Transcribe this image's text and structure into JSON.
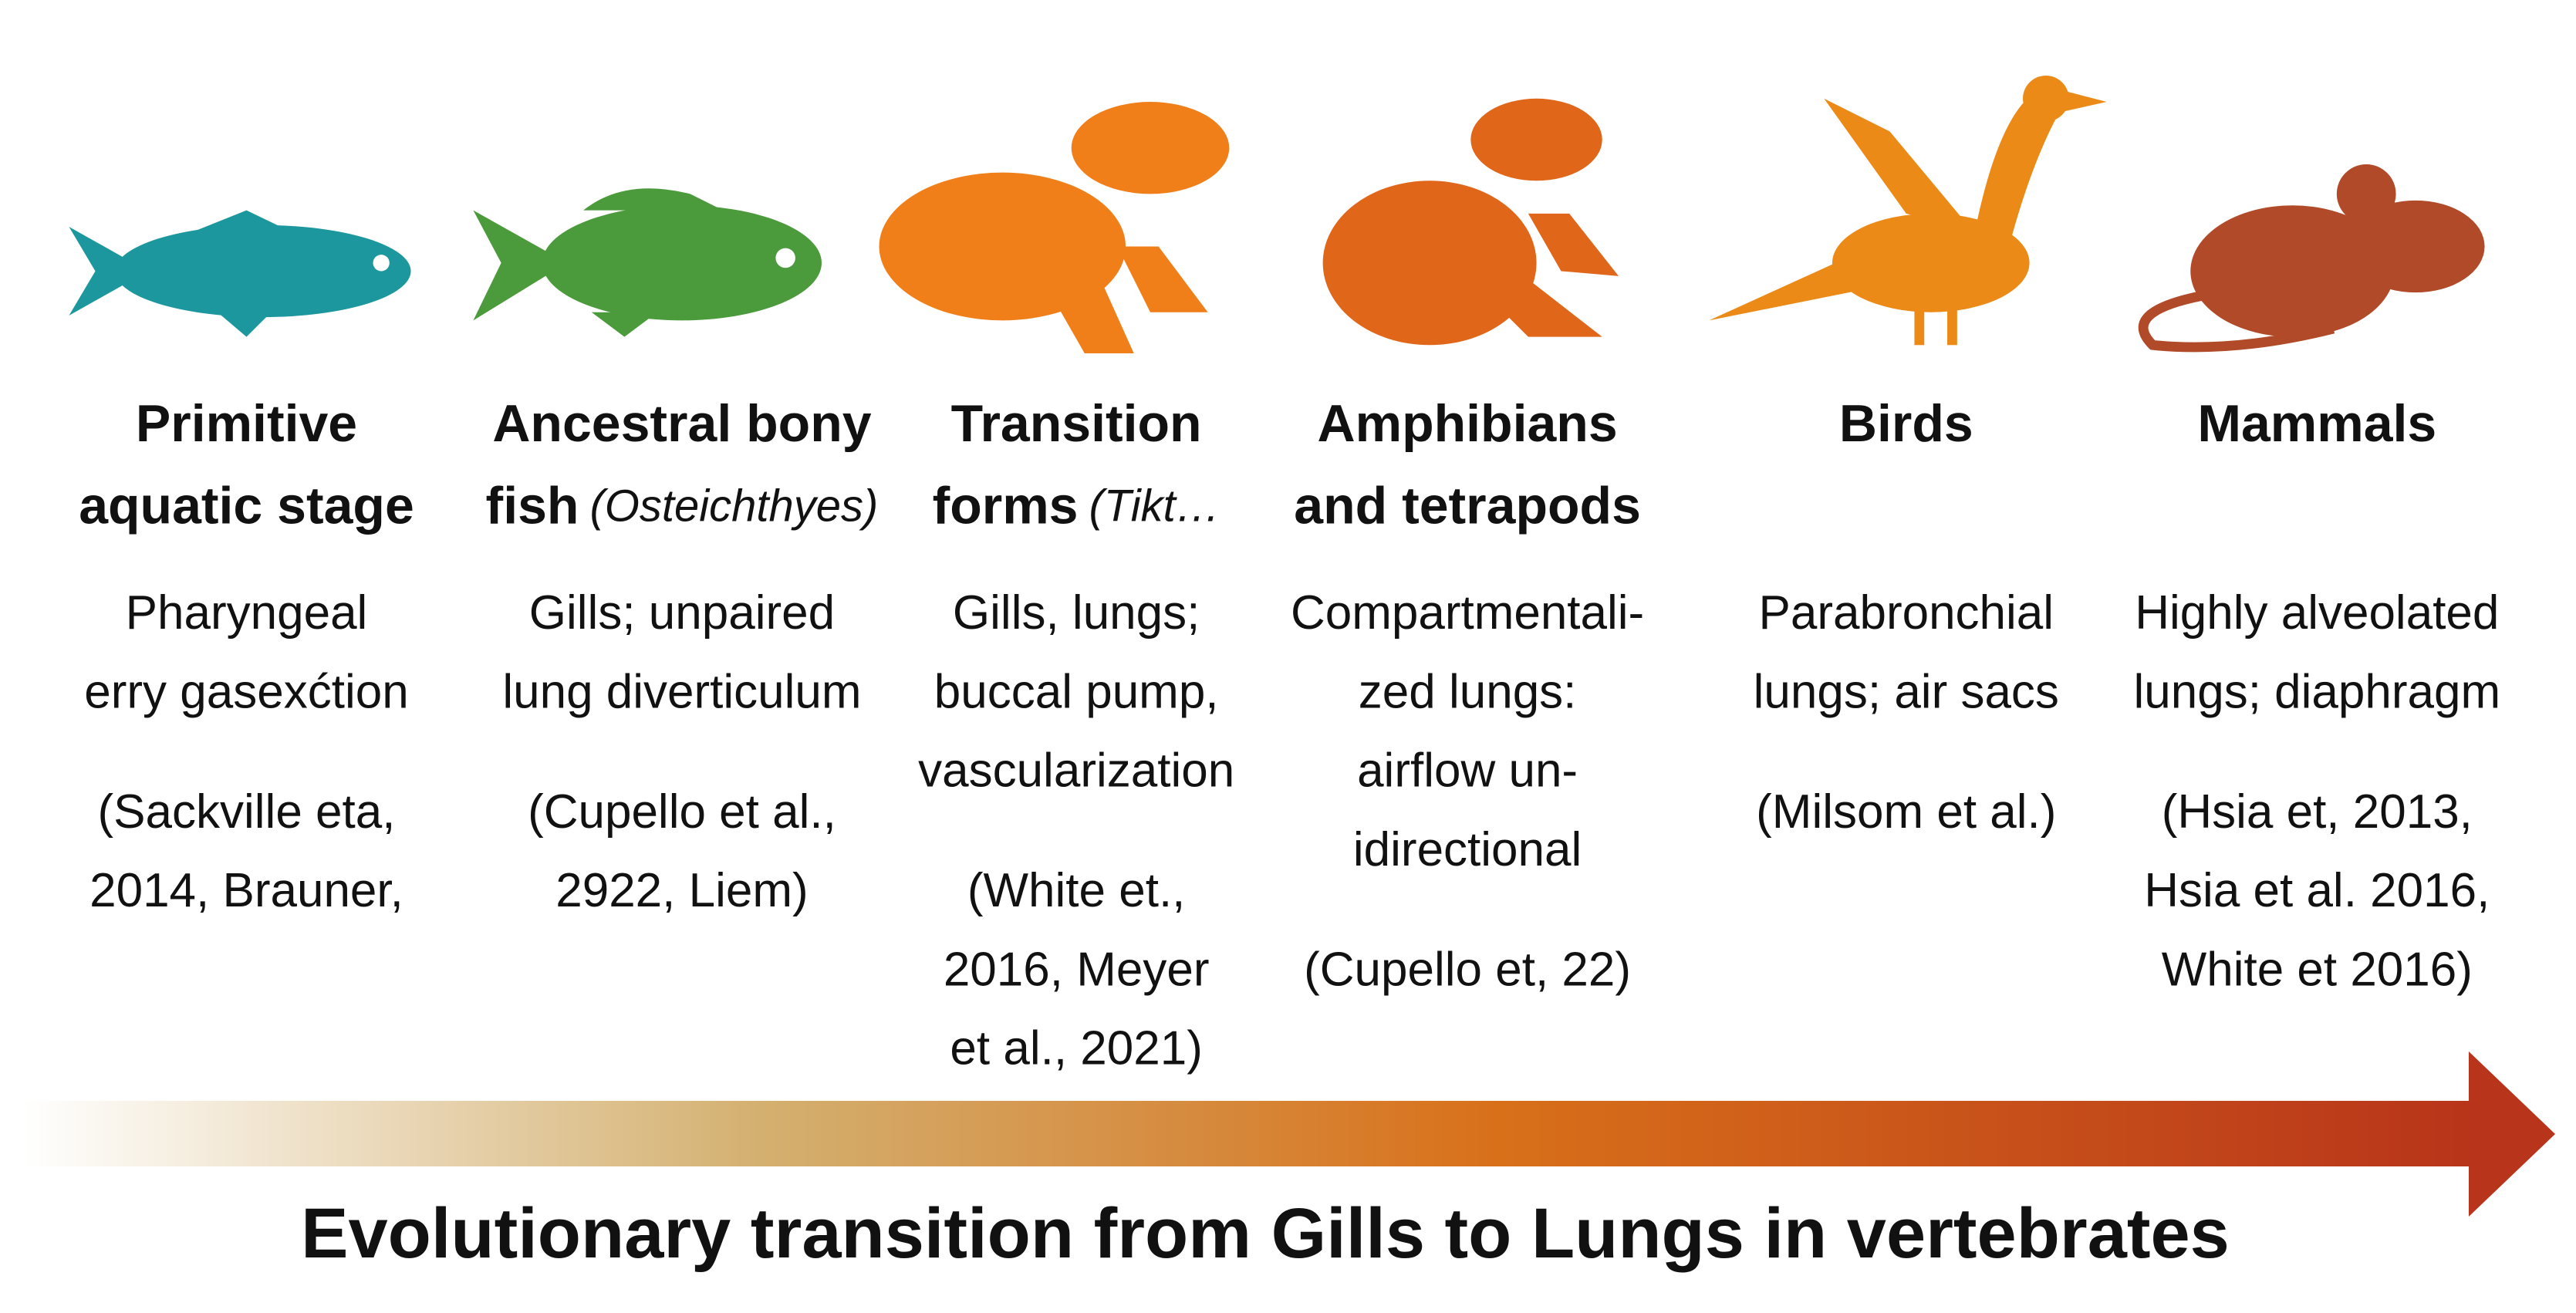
{
  "stages": [
    {
      "title": [
        "Primitive",
        "aquatic stage"
      ],
      "description": [
        "Pharyngeal",
        "erry gasexćtion"
      ],
      "citation": [
        "(Sackville eta,",
        "2014, Brauner,"
      ]
    },
    {
      "title": [
        "Ancestral bony",
        "fish"
      ],
      "title_note": "(Osteichthyes)",
      "description": [
        "Gills; unpaired",
        "lung diverticulum"
      ],
      "citation": [
        "(Cupello et al.,",
        "2922, Liem)"
      ]
    },
    {
      "title": [
        "Transition",
        "forms"
      ],
      "title_note": "(Tikt…",
      "description": [
        "Gills, lungs;",
        "buccal pump,",
        "vascularization"
      ],
      "citation": [
        "(White et.,",
        "2016, Meyer",
        "et al., 2021)"
      ]
    },
    {
      "title": [
        "Amphibians",
        "and tetrapods"
      ],
      "description": [
        "Compartmentali-",
        "zed lungs:",
        "airflow un-",
        "idirectional"
      ],
      "citation": [
        "(Cupello et, 22)"
      ]
    },
    {
      "title": [
        "Birds"
      ],
      "description": [
        "Parabronchial",
        "lungs; air sacs"
      ],
      "citation": [
        "(Milsom et al.)"
      ]
    },
    {
      "title": [
        "Mammals"
      ],
      "description": [
        "Highly alveolated",
        "lungs; diaphragm"
      ],
      "citation": [
        "(Hsia et, 2013,",
        "Hsia et al. 2016,",
        "White et 2016)"
      ]
    }
  ],
  "caption": "Evolutionary transition from Gills to Lungs in vertebrates"
}
